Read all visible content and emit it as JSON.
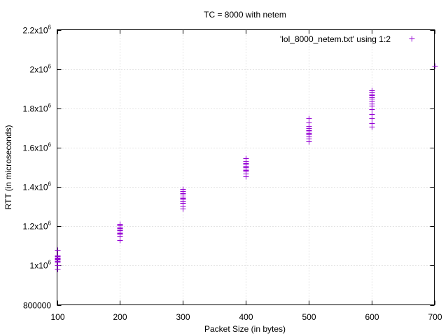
{
  "chart_data": {
    "type": "scatter",
    "title": "TC = 8000 with netem",
    "xlabel": "Packet Size (in bytes)",
    "ylabel": "RTT (in microseconds)",
    "xlim": [
      100,
      700
    ],
    "ylim": [
      800000,
      2200000
    ],
    "grid": true,
    "legend_position": "top-right",
    "x_ticks": [
      {
        "value": 100,
        "label": "100"
      },
      {
        "value": 200,
        "label": "200"
      },
      {
        "value": 300,
        "label": "300"
      },
      {
        "value": 400,
        "label": "400"
      },
      {
        "value": 500,
        "label": "500"
      },
      {
        "value": 600,
        "label": "600"
      },
      {
        "value": 700,
        "label": "700"
      }
    ],
    "y_ticks": [
      {
        "value": 800000,
        "base": "800000",
        "exp": ""
      },
      {
        "value": 1000000,
        "base": "1x10",
        "exp": "6"
      },
      {
        "value": 1200000,
        "base": "1.2x10",
        "exp": "6"
      },
      {
        "value": 1400000,
        "base": "1.4x10",
        "exp": "6"
      },
      {
        "value": 1600000,
        "base": "1.6x10",
        "exp": "6"
      },
      {
        "value": 1800000,
        "base": "1.8x10",
        "exp": "6"
      },
      {
        "value": 2000000,
        "base": "2x10",
        "exp": "6"
      },
      {
        "value": 2200000,
        "base": "2.2x10",
        "exp": "6"
      }
    ],
    "series": [
      {
        "name": "'lol_8000_netem.txt' using 1:2",
        "color": "#9400d3",
        "marker": "plus",
        "points": [
          [
            100,
            985000
          ],
          [
            100,
            1000000
          ],
          [
            100,
            1015000
          ],
          [
            100,
            1022000
          ],
          [
            100,
            1028000
          ],
          [
            100,
            1033000
          ],
          [
            100,
            1038000
          ],
          [
            100,
            1042000
          ],
          [
            100,
            1046000
          ],
          [
            100,
            1050000
          ],
          [
            100,
            1078000
          ],
          [
            200,
            1130000
          ],
          [
            200,
            1152000
          ],
          [
            200,
            1160000
          ],
          [
            200,
            1166000
          ],
          [
            200,
            1172000
          ],
          [
            200,
            1178000
          ],
          [
            200,
            1184000
          ],
          [
            200,
            1190000
          ],
          [
            200,
            1196000
          ],
          [
            200,
            1203000
          ],
          [
            200,
            1210000
          ],
          [
            300,
            1290000
          ],
          [
            300,
            1305000
          ],
          [
            300,
            1318000
          ],
          [
            300,
            1328000
          ],
          [
            300,
            1336000
          ],
          [
            300,
            1344000
          ],
          [
            300,
            1352000
          ],
          [
            300,
            1360000
          ],
          [
            300,
            1368000
          ],
          [
            300,
            1378000
          ],
          [
            300,
            1390000
          ],
          [
            400,
            1455000
          ],
          [
            400,
            1468000
          ],
          [
            400,
            1478000
          ],
          [
            400,
            1486000
          ],
          [
            400,
            1494000
          ],
          [
            400,
            1501000
          ],
          [
            400,
            1508000
          ],
          [
            400,
            1515000
          ],
          [
            400,
            1522000
          ],
          [
            400,
            1532000
          ],
          [
            400,
            1545000
          ],
          [
            500,
            1632000
          ],
          [
            500,
            1645000
          ],
          [
            500,
            1657000
          ],
          [
            500,
            1666000
          ],
          [
            500,
            1674000
          ],
          [
            500,
            1682000
          ],
          [
            500,
            1690000
          ],
          [
            500,
            1698000
          ],
          [
            500,
            1710000
          ],
          [
            500,
            1728000
          ],
          [
            500,
            1748000
          ],
          [
            600,
            1705000
          ],
          [
            600,
            1725000
          ],
          [
            600,
            1750000
          ],
          [
            600,
            1772000
          ],
          [
            600,
            1795000
          ],
          [
            600,
            1812000
          ],
          [
            600,
            1825000
          ],
          [
            600,
            1838000
          ],
          [
            600,
            1848000
          ],
          [
            600,
            1858000
          ],
          [
            600,
            1866000
          ],
          [
            600,
            1874000
          ],
          [
            600,
            1882000
          ],
          [
            600,
            1892000
          ],
          [
            700,
            2015000
          ]
        ]
      }
    ]
  }
}
